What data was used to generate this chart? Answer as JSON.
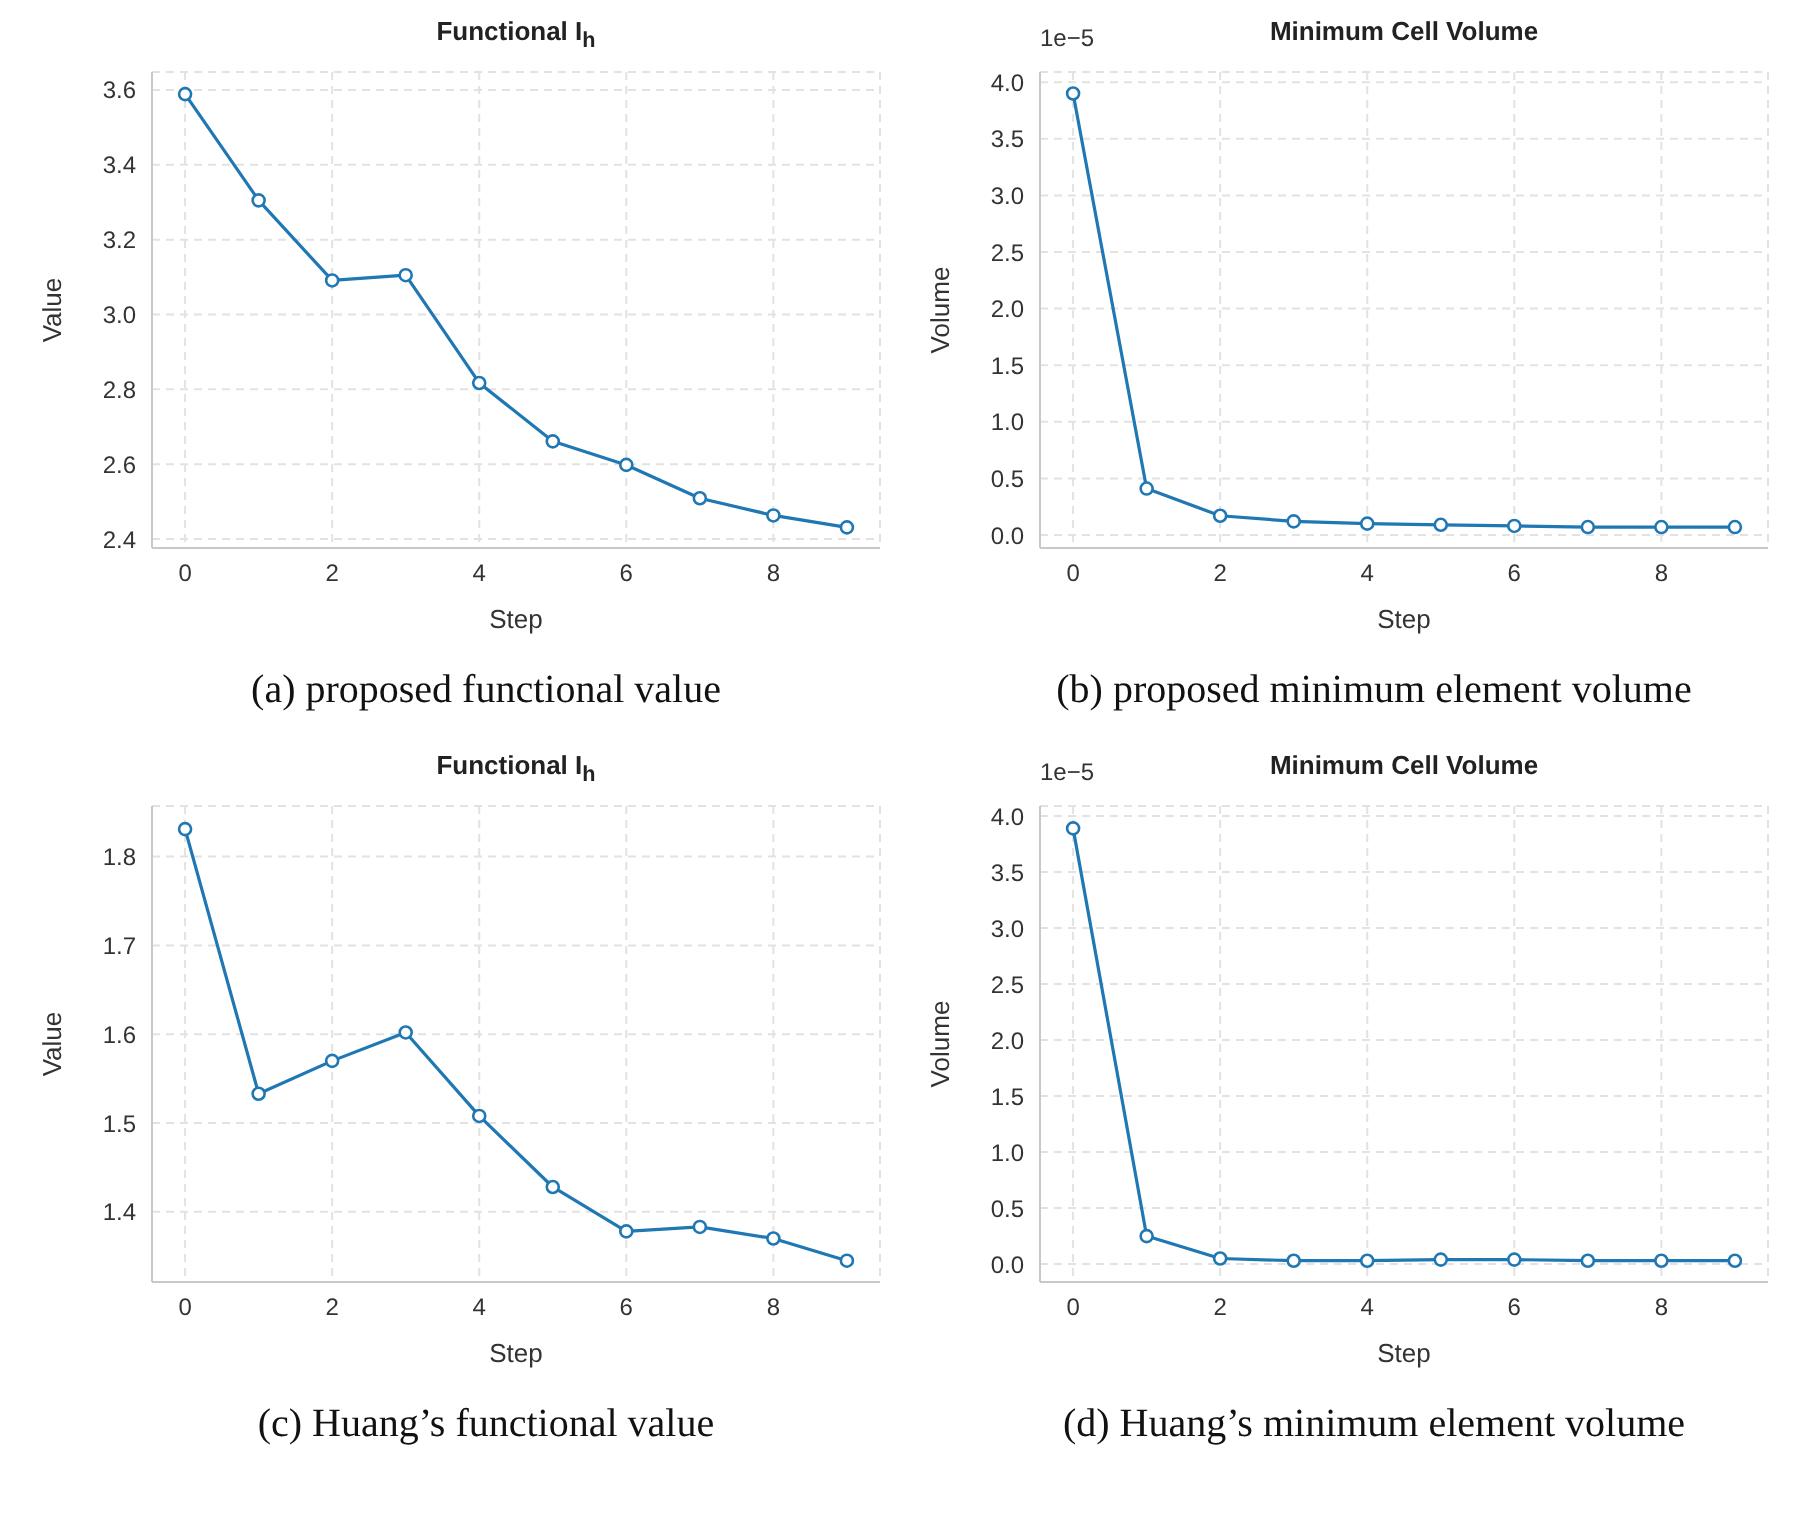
{
  "chart_data": [
    {
      "type": "line",
      "title": "Functional I$_{h}$",
      "xlabel": "Step",
      "ylabel": "Value",
      "x": [
        0,
        1,
        2,
        3,
        4,
        5,
        6,
        7,
        8,
        9
      ],
      "series": [
        {
          "color": "#1f77b4",
          "values": [
            3.589,
            3.305,
            3.091,
            3.105,
            2.817,
            2.661,
            2.598,
            2.509,
            2.463,
            2.431
          ]
        }
      ],
      "xlim": [
        -0.45,
        9.45
      ],
      "xticks": [
        0,
        2,
        4,
        6,
        8
      ],
      "ylim": [
        2.376,
        3.648
      ],
      "yticks": [
        {
          "value": 2.4,
          "label": "2.4"
        },
        {
          "value": 2.6,
          "label": "2.6"
        },
        {
          "value": 2.8,
          "label": "2.8"
        },
        {
          "value": 3.0,
          "label": "3.0"
        },
        {
          "value": 3.2,
          "label": "3.2"
        },
        {
          "value": 3.4,
          "label": "3.4"
        },
        {
          "value": 3.6,
          "label": "3.6"
        }
      ],
      "grid": true,
      "marker": "circle",
      "line_style": "solid",
      "annotations": [
        "(a)  proposed functional value"
      ]
    },
    {
      "type": "line",
      "title": "Minimum Cell Volume",
      "xlabel": "Step",
      "ylabel": "Volume",
      "x": [
        0,
        1,
        2,
        3,
        4,
        5,
        6,
        7,
        8,
        9
      ],
      "series": [
        {
          "color": "#1f77b4",
          "values": [
            3.9,
            0.41,
            0.17,
            0.12,
            0.1,
            0.09,
            0.08,
            0.07,
            0.07,
            0.07
          ]
        }
      ],
      "xlim": [
        -0.45,
        9.45
      ],
      "xticks": [
        0,
        2,
        4,
        6,
        8
      ],
      "ylim": [
        -0.115,
        4.09
      ],
      "yticks": [
        {
          "value": 0,
          "label": "0.0"
        },
        {
          "value": 0.5,
          "label": "0.5"
        },
        {
          "value": 1,
          "label": "1.0"
        },
        {
          "value": 1.5,
          "label": "1.5"
        },
        {
          "value": 2,
          "label": "2.0"
        },
        {
          "value": 2.5,
          "label": "2.5"
        },
        {
          "value": 3,
          "label": "3.0"
        },
        {
          "value": 3.5,
          "label": "3.5"
        },
        {
          "value": 4,
          "label": "4.0"
        }
      ],
      "grid": true,
      "marker": "circle",
      "line_style": "solid",
      "annotations": [
        "1e−5",
        "(b)  proposed minimum element volume"
      ]
    },
    {
      "type": "line",
      "title": "Functional I$_{h}$",
      "xlabel": "Step",
      "ylabel": "Value",
      "x": [
        0,
        1,
        2,
        3,
        4,
        5,
        6,
        7,
        8,
        9
      ],
      "series": [
        {
          "color": "#1f77b4",
          "values": [
            1.831,
            1.533,
            1.57,
            1.602,
            1.508,
            1.428,
            1.378,
            1.383,
            1.37,
            1.345
          ]
        }
      ],
      "xlim": [
        -0.45,
        9.45
      ],
      "xticks": [
        0,
        2,
        4,
        6,
        8
      ],
      "ylim": [
        1.321,
        1.857
      ],
      "yticks": [
        1.4,
        1.5,
        1.6,
        1.7,
        1.8
      ],
      "grid": true,
      "marker": "circle",
      "line_style": "solid",
      "annotations": [
        "(c)  Huang’s functional value"
      ]
    },
    {
      "type": "line",
      "title": "Minimum Cell Volume",
      "xlabel": "Step",
      "ylabel": "Volume",
      "x": [
        0,
        1,
        2,
        3,
        4,
        5,
        6,
        7,
        8,
        9
      ],
      "series": [
        {
          "color": "#1f77b4",
          "values": [
            3.89,
            0.25,
            0.05,
            0.03,
            0.03,
            0.04,
            0.04,
            0.03,
            0.03,
            0.03
          ]
        }
      ],
      "xlim": [
        -0.45,
        9.45
      ],
      "xticks": [
        0,
        2,
        4,
        6,
        8
      ],
      "ylim": [
        -0.16,
        4.09
      ],
      "yticks": [
        {
          "value": 0,
          "label": "0.0"
        },
        {
          "value": 0.5,
          "label": "0.5"
        },
        {
          "value": 1,
          "label": "1.0"
        },
        {
          "value": 1.5,
          "label": "1.5"
        },
        {
          "value": 2,
          "label": "2.0"
        },
        {
          "value": 2.5,
          "label": "2.5"
        },
        {
          "value": 3,
          "label": "3.0"
        },
        {
          "value": 3.5,
          "label": "3.5"
        },
        {
          "value": 4,
          "label": "4.0"
        }
      ],
      "grid": true,
      "marker": "circle",
      "line_style": "solid",
      "annotations": [
        "1e−5",
        "(d)  Huang’s minimum element volume"
      ]
    }
  ]
}
